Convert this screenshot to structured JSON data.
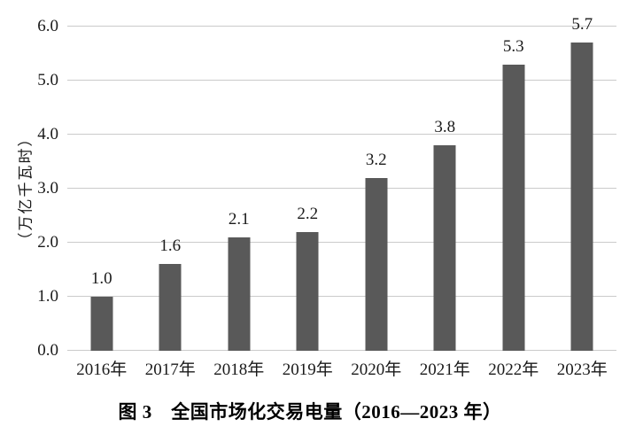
{
  "chart_data": {
    "type": "bar",
    "categories": [
      "2016年",
      "2017年",
      "2018年",
      "2019年",
      "2020年",
      "2021年",
      "2022年",
      "2023年"
    ],
    "values": [
      1.0,
      1.6,
      2.1,
      2.2,
      3.2,
      3.8,
      5.3,
      5.7
    ],
    "value_labels": [
      "1.0",
      "1.6",
      "2.1",
      "2.2",
      "3.2",
      "3.8",
      "5.3",
      "5.7"
    ],
    "title": "图 3　全国市场化交易电量（2016—2023 年）",
    "xlabel": "",
    "ylabel": "（万亿千瓦时）",
    "ylim": [
      0.0,
      6.0
    ],
    "yticks": [
      "0.0",
      "1.0",
      "2.0",
      "3.0",
      "4.0",
      "5.0",
      "6.0"
    ],
    "grid": "horizontal",
    "legend": "none",
    "bar_color": "#595959",
    "gridline_color": "#cbcbcb",
    "text_color": "#1a1a1a"
  }
}
